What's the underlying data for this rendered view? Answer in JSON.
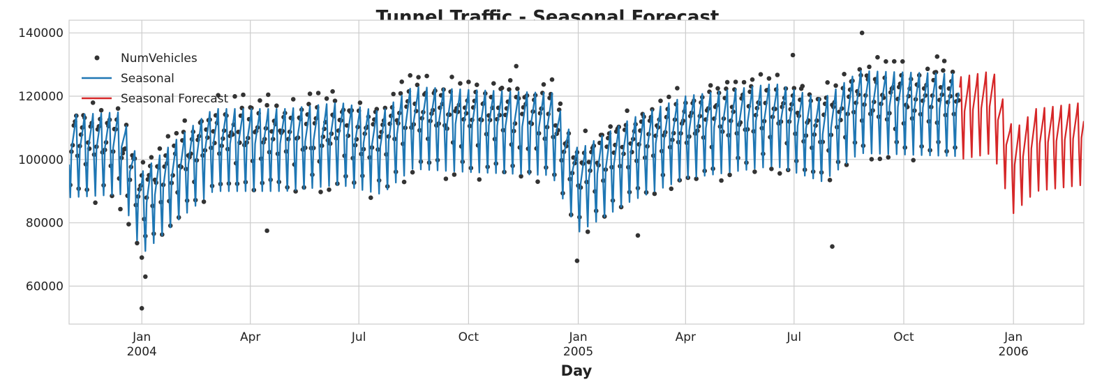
{
  "chart_data": {
    "type": "line",
    "title": "Tunnel Traffic - Seasonal Forecast",
    "xlabel": "Day",
    "ylabel": "",
    "x_range": [
      "2003-11-01",
      "2006-03-01"
    ],
    "ylim": [
      48000,
      144000
    ],
    "y_ticks": [
      60000,
      80000,
      100000,
      120000,
      140000
    ],
    "x_ticks": [
      {
        "date": "2004-01-01",
        "label": "Jan",
        "sublabel": "2004"
      },
      {
        "date": "2004-04-01",
        "label": "Apr",
        "sublabel": ""
      },
      {
        "date": "2004-07-01",
        "label": "Jul",
        "sublabel": ""
      },
      {
        "date": "2004-10-01",
        "label": "Oct",
        "sublabel": ""
      },
      {
        "date": "2005-01-01",
        "label": "Jan",
        "sublabel": "2005"
      },
      {
        "date": "2005-04-01",
        "label": "Apr",
        "sublabel": ""
      },
      {
        "date": "2005-07-01",
        "label": "Jul",
        "sublabel": ""
      },
      {
        "date": "2005-10-01",
        "label": "Oct",
        "sublabel": ""
      },
      {
        "date": "2006-01-01",
        "label": "Jan",
        "sublabel": "2006"
      }
    ],
    "grid": true,
    "legend_position": "top-left",
    "series": [
      {
        "name": "NumVehicles",
        "kind": "scatter",
        "color": "#333333",
        "x_range": [
          "2003-11-01",
          "2005-11-16"
        ],
        "trend": [
          {
            "date": "2003-11-01",
            "value": 102000
          },
          {
            "date": "2003-12-10",
            "value": 102000
          },
          {
            "date": "2004-01-01",
            "value": 85000
          },
          {
            "date": "2004-02-01",
            "value": 95000
          },
          {
            "date": "2004-03-01",
            "value": 104000
          },
          {
            "date": "2004-05-01",
            "value": 104000
          },
          {
            "date": "2004-06-15",
            "value": 106000
          },
          {
            "date": "2004-07-20",
            "value": 103000
          },
          {
            "date": "2004-08-15",
            "value": 111000
          },
          {
            "date": "2004-10-01",
            "value": 110000
          },
          {
            "date": "2004-12-10",
            "value": 109000
          },
          {
            "date": "2005-01-01",
            "value": 92000
          },
          {
            "date": "2005-02-15",
            "value": 101000
          },
          {
            "date": "2005-04-01",
            "value": 108000
          },
          {
            "date": "2005-06-15",
            "value": 112000
          },
          {
            "date": "2005-07-25",
            "value": 107000
          },
          {
            "date": "2005-08-25",
            "value": 116000
          },
          {
            "date": "2005-11-16",
            "value": 115000
          }
        ],
        "amplitude": 13000,
        "outliers": [
          {
            "date": "2004-01-01",
            "value": 53000
          },
          {
            "date": "2004-01-04",
            "value": 63000
          },
          {
            "date": "2004-01-01",
            "value": 69000
          },
          {
            "date": "2004-12-31",
            "value": 68000
          },
          {
            "date": "2005-08-02",
            "value": 72500
          },
          {
            "date": "2004-06-09",
            "value": 121500
          },
          {
            "date": "2004-11-10",
            "value": 129500
          },
          {
            "date": "2005-08-27",
            "value": 140000
          },
          {
            "date": "2005-10-29",
            "value": 132500
          },
          {
            "date": "2005-06-30",
            "value": 133000
          },
          {
            "date": "2004-04-15",
            "value": 77500
          },
          {
            "date": "2005-02-20",
            "value": 76000
          }
        ]
      },
      {
        "name": "Seasonal",
        "kind": "line",
        "color": "#1f77b4",
        "x_range": [
          "2003-11-01",
          "2005-11-16"
        ],
        "trend": [
          {
            "date": "2003-11-01",
            "value": 101000
          },
          {
            "date": "2003-12-15",
            "value": 102000
          },
          {
            "date": "2004-01-01",
            "value": 83000
          },
          {
            "date": "2004-02-01",
            "value": 94000
          },
          {
            "date": "2004-03-01",
            "value": 103000
          },
          {
            "date": "2004-05-01",
            "value": 103000
          },
          {
            "date": "2004-06-15",
            "value": 105000
          },
          {
            "date": "2004-07-20",
            "value": 102000
          },
          {
            "date": "2004-08-15",
            "value": 110000
          },
          {
            "date": "2004-10-01",
            "value": 109000
          },
          {
            "date": "2004-12-10",
            "value": 108000
          },
          {
            "date": "2005-01-01",
            "value": 90000
          },
          {
            "date": "2005-02-15",
            "value": 100000
          },
          {
            "date": "2005-04-01",
            "value": 107000
          },
          {
            "date": "2005-06-15",
            "value": 111000
          },
          {
            "date": "2005-07-25",
            "value": 106000
          },
          {
            "date": "2005-08-25",
            "value": 115000
          },
          {
            "date": "2005-11-16",
            "value": 114000
          }
        ],
        "amplitude": 13000
      },
      {
        "name": "Seasonal Forecast",
        "kind": "line",
        "color": "#d62728",
        "x_range": [
          "2005-11-17",
          "2006-03-01"
        ],
        "trend": [
          {
            "date": "2005-11-17",
            "value": 113000
          },
          {
            "date": "2005-12-15",
            "value": 115000
          },
          {
            "date": "2006-01-01",
            "value": 96000
          },
          {
            "date": "2006-01-20",
            "value": 103000
          },
          {
            "date": "2006-03-01",
            "value": 105000
          }
        ],
        "amplitude": 13000
      }
    ]
  }
}
